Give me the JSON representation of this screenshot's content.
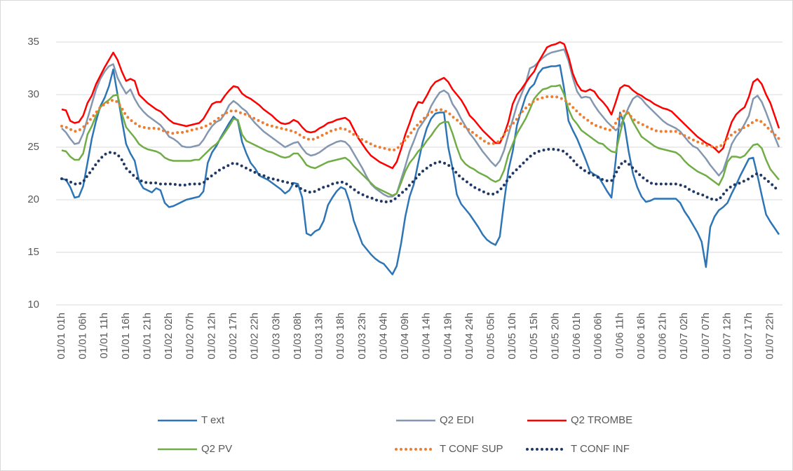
{
  "chart_data": {
    "type": "line",
    "categories": [
      "01/01 01h",
      null,
      null,
      null,
      null,
      "01/01 06h",
      null,
      null,
      null,
      null,
      "01/01 11h",
      null,
      null,
      null,
      null,
      "01/01 16h",
      null,
      null,
      null,
      null,
      "01/01 21h",
      null,
      null,
      null,
      null,
      "01/02 02h",
      null,
      null,
      null,
      null,
      "01/02 07h",
      null,
      null,
      null,
      null,
      "01/02 12h",
      null,
      null,
      null,
      null,
      "01/02 17h",
      null,
      null,
      null,
      null,
      "01/02 22h",
      null,
      null,
      null,
      null,
      "01/03 03h",
      null,
      null,
      null,
      null,
      "01/03 08h",
      null,
      null,
      null,
      null,
      "01/03 13h",
      null,
      null,
      null,
      null,
      "01/03 18h",
      null,
      null,
      null,
      null,
      "01/03 23h",
      null,
      null,
      null,
      null,
      "01/04 04h",
      null,
      null,
      null,
      null,
      "01/04 09h",
      null,
      null,
      null,
      null,
      "01/04 14h",
      null,
      null,
      null,
      null,
      "01/04 19h",
      null,
      null,
      null,
      null,
      "01/04 24h",
      null,
      null,
      null,
      null,
      "01/05 05h",
      null,
      null,
      null,
      null,
      "01/05 10h",
      null,
      null,
      null,
      null,
      "01/05 15h",
      null,
      null,
      null,
      null,
      "01/05 20h",
      null,
      null,
      null,
      null,
      "01/06 01h",
      null,
      null,
      null,
      null,
      "01/06 06h",
      null,
      null,
      null,
      null,
      "01/06 11h",
      null,
      null,
      null,
      null,
      "01/06 16h",
      null,
      null,
      null,
      null,
      "01/06 21h",
      null,
      null,
      null,
      null,
      "01/07 02h",
      null,
      null,
      null,
      null,
      "01/07 07h",
      null,
      null,
      null,
      null,
      "01/07 12h",
      null,
      null,
      null,
      null,
      "01/07 17h",
      null,
      null,
      null,
      null,
      "01/07 22h",
      null,
      null
    ],
    "series": [
      {
        "name": "T ext",
        "color": "#2e75b6",
        "dash": "solid",
        "values": [
          22.0,
          21.9,
          21.2,
          20.2,
          20.3,
          21.3,
          23.5,
          25.8,
          27.5,
          28.9,
          29.7,
          30.8,
          32.4,
          30.0,
          27.6,
          25.3,
          24.4,
          23.7,
          21.8,
          21.1,
          20.9,
          20.7,
          21.1,
          20.9,
          19.7,
          19.3,
          19.4,
          19.6,
          19.8,
          20.0,
          20.1,
          20.2,
          20.3,
          20.8,
          23.5,
          24.5,
          25.1,
          25.9,
          26.6,
          27.3,
          27.9,
          27.5,
          25.5,
          24.4,
          23.5,
          23.0,
          22.3,
          22.1,
          21.9,
          21.6,
          21.3,
          21.0,
          20.6,
          20.9,
          21.6,
          21.5,
          20.2,
          16.8,
          16.6,
          17.0,
          17.2,
          18.0,
          19.5,
          20.2,
          20.8,
          21.2,
          21.0,
          19.8,
          18.0,
          16.9,
          15.8,
          15.3,
          14.8,
          14.4,
          14.1,
          13.9,
          13.4,
          12.9,
          13.7,
          15.8,
          18.4,
          20.3,
          21.5,
          23.5,
          25.4,
          26.8,
          27.7,
          28.2,
          28.3,
          28.3,
          25.0,
          23.0,
          20.5,
          19.6,
          19.1,
          18.6,
          18.0,
          17.4,
          16.7,
          16.2,
          15.9,
          15.7,
          16.5,
          19.8,
          22.8,
          24.6,
          27.1,
          28.5,
          29.8,
          30.6,
          31.0,
          32.0,
          32.5,
          32.6,
          32.7,
          32.7,
          32.8,
          30.5,
          27.5,
          26.6,
          25.8,
          24.8,
          23.8,
          22.7,
          22.4,
          22.2,
          21.5,
          20.8,
          20.2,
          23.8,
          28.3,
          27.2,
          24.6,
          22.5,
          21.2,
          20.3,
          19.8,
          19.9,
          20.1,
          20.1,
          20.1,
          20.1,
          20.1,
          20.1,
          19.7,
          18.9,
          18.3,
          17.6,
          16.9,
          16.0,
          13.6,
          17.4,
          18.4,
          19.0,
          19.3,
          19.7,
          20.6,
          21.4,
          22.3,
          23.1,
          23.9,
          24.0,
          22.3,
          20.4,
          18.6,
          17.9,
          17.3,
          16.7
        ]
      },
      {
        "name": "Q2 EDI",
        "color": "#8497b0",
        "dash": "solid",
        "values": [
          26.8,
          26.4,
          25.8,
          25.3,
          25.4,
          26.3,
          27.7,
          29.1,
          30.5,
          31.5,
          32.2,
          32.7,
          32.9,
          31.6,
          30.8,
          30.1,
          30.5,
          29.6,
          28.9,
          28.4,
          28.0,
          27.7,
          27.4,
          27.1,
          26.6,
          26.0,
          25.8,
          25.5,
          25.1,
          25.0,
          25.0,
          25.1,
          25.2,
          25.7,
          26.4,
          27.0,
          27.4,
          27.6,
          28.2,
          29.0,
          29.4,
          29.1,
          28.7,
          28.4,
          27.8,
          27.3,
          26.9,
          26.5,
          26.2,
          25.9,
          25.6,
          25.3,
          25.0,
          25.2,
          25.4,
          25.5,
          24.9,
          24.4,
          24.2,
          24.3,
          24.5,
          24.8,
          25.1,
          25.3,
          25.5,
          25.6,
          25.5,
          25.1,
          24.4,
          23.7,
          23.0,
          22.2,
          21.5,
          21.1,
          20.8,
          20.5,
          20.3,
          20.3,
          20.6,
          21.9,
          23.2,
          24.6,
          25.6,
          26.7,
          27.3,
          27.9,
          28.9,
          29.6,
          30.2,
          30.4,
          30.1,
          29.1,
          28.5,
          27.7,
          27.0,
          26.3,
          25.8,
          25.2,
          24.6,
          24.1,
          23.6,
          23.2,
          23.7,
          24.7,
          26.2,
          27.6,
          29.0,
          30.0,
          31.0,
          32.5,
          32.7,
          33.1,
          33.5,
          33.8,
          34.0,
          34.1,
          34.2,
          34.3,
          33.2,
          31.6,
          30.3,
          29.7,
          29.8,
          29.7,
          29.0,
          28.4,
          27.9,
          27.4,
          27.0,
          26.6,
          27.0,
          27.8,
          28.8,
          29.6,
          29.9,
          29.6,
          29.1,
          28.7,
          28.3,
          27.9,
          27.5,
          27.2,
          27.0,
          26.8,
          26.5,
          26.0,
          25.5,
          25.1,
          24.9,
          24.4,
          23.9,
          23.3,
          22.8,
          22.3,
          22.8,
          24.0,
          25.3,
          26.0,
          26.5,
          27.2,
          28.0,
          29.6,
          29.9,
          29.3,
          28.3,
          27.2,
          26.0,
          25.0
        ]
      },
      {
        "name": "Q2 TROMBE",
        "color": "#ff0000",
        "dash": "solid",
        "values": [
          28.6,
          28.5,
          27.5,
          27.3,
          27.4,
          28.0,
          29.2,
          29.9,
          31.0,
          31.8,
          32.6,
          33.3,
          34.0,
          33.3,
          32.2,
          31.3,
          31.5,
          31.3,
          30.0,
          29.6,
          29.2,
          28.9,
          28.6,
          28.4,
          28.0,
          27.6,
          27.3,
          27.2,
          27.1,
          27.0,
          27.1,
          27.2,
          27.3,
          27.7,
          28.4,
          29.1,
          29.3,
          29.3,
          29.9,
          30.4,
          30.8,
          30.7,
          30.1,
          29.8,
          29.6,
          29.3,
          29.0,
          28.6,
          28.3,
          28.0,
          27.6,
          27.3,
          27.2,
          27.3,
          27.6,
          27.4,
          26.9,
          26.5,
          26.4,
          26.5,
          26.8,
          27.0,
          27.3,
          27.4,
          27.6,
          27.7,
          27.8,
          27.5,
          26.7,
          25.9,
          25.3,
          24.7,
          24.2,
          23.9,
          23.6,
          23.4,
          23.2,
          23.0,
          23.6,
          24.8,
          26.2,
          27.3,
          28.5,
          29.3,
          29.2,
          29.9,
          30.7,
          31.2,
          31.4,
          31.6,
          31.2,
          30.5,
          30.0,
          29.5,
          28.8,
          28.0,
          27.6,
          27.1,
          26.6,
          26.2,
          25.8,
          25.4,
          25.4,
          26.2,
          27.4,
          29.1,
          30.0,
          30.5,
          31.1,
          31.7,
          32.2,
          33.1,
          33.8,
          34.5,
          34.7,
          34.8,
          35.0,
          34.8,
          33.6,
          32.0,
          31.0,
          30.4,
          30.3,
          30.5,
          30.3,
          29.7,
          29.3,
          28.8,
          28.1,
          29.3,
          30.6,
          30.9,
          30.8,
          30.4,
          30.1,
          29.9,
          29.6,
          29.4,
          29.1,
          28.9,
          28.7,
          28.6,
          28.4,
          28.0,
          27.6,
          27.2,
          26.8,
          26.4,
          26.0,
          25.7,
          25.4,
          25.2,
          24.9,
          24.5,
          24.9,
          26.2,
          27.4,
          28.1,
          28.5,
          28.8,
          29.8,
          31.2,
          31.5,
          31.0,
          30.0,
          29.2,
          28.0,
          26.8
        ]
      },
      {
        "name": "Q2 PV",
        "color": "#70ad47",
        "dash": "solid",
        "values": [
          24.7,
          24.6,
          24.1,
          23.8,
          23.8,
          24.4,
          26.2,
          27.0,
          28.0,
          28.8,
          29.2,
          29.5,
          29.9,
          30.0,
          28.2,
          26.9,
          26.4,
          25.9,
          25.3,
          25.0,
          24.8,
          24.7,
          24.6,
          24.4,
          24.0,
          23.8,
          23.7,
          23.7,
          23.7,
          23.7,
          23.7,
          23.8,
          23.8,
          24.2,
          24.6,
          25.0,
          25.3,
          25.8,
          26.4,
          27.0,
          27.7,
          27.6,
          26.2,
          25.6,
          25.4,
          25.2,
          25.0,
          24.8,
          24.6,
          24.5,
          24.3,
          24.1,
          24.0,
          24.1,
          24.4,
          24.4,
          23.9,
          23.3,
          23.1,
          23.0,
          23.2,
          23.4,
          23.6,
          23.7,
          23.8,
          23.9,
          24.0,
          23.7,
          23.2,
          22.8,
          22.4,
          22.0,
          21.6,
          21.2,
          21.0,
          20.8,
          20.6,
          20.4,
          20.6,
          21.6,
          22.7,
          23.5,
          24.0,
          24.6,
          25.0,
          25.6,
          26.1,
          26.7,
          27.2,
          27.4,
          27.4,
          26.3,
          25.0,
          23.9,
          23.4,
          23.1,
          22.9,
          22.6,
          22.4,
          22.2,
          21.9,
          21.7,
          21.9,
          22.8,
          24.3,
          25.3,
          26.3,
          27.0,
          27.7,
          28.6,
          29.6,
          30.1,
          30.5,
          30.6,
          30.8,
          30.8,
          30.9,
          30.0,
          28.6,
          27.7,
          27.2,
          26.6,
          26.3,
          26.0,
          25.7,
          25.4,
          25.3,
          24.9,
          24.6,
          24.5,
          26.3,
          28.0,
          28.3,
          27.4,
          26.7,
          26.0,
          25.7,
          25.4,
          25.1,
          24.9,
          24.8,
          24.7,
          24.6,
          24.5,
          24.2,
          23.7,
          23.3,
          23.0,
          22.7,
          22.5,
          22.3,
          22.0,
          21.7,
          21.4,
          22.2,
          23.6,
          24.1,
          24.1,
          24.0,
          24.2,
          24.7,
          25.2,
          25.3,
          24.9,
          23.8,
          22.9,
          22.4,
          21.9
        ]
      },
      {
        "name": "T CONF SUP",
        "color": "#ed7d31",
        "dash": "dot",
        "values": [
          27.0,
          26.9,
          26.7,
          26.5,
          26.6,
          26.9,
          27.3,
          27.8,
          28.3,
          28.8,
          29.1,
          29.3,
          29.5,
          29.3,
          28.7,
          28.0,
          27.6,
          27.3,
          27.0,
          26.9,
          26.8,
          26.8,
          26.8,
          26.7,
          26.5,
          26.4,
          26.3,
          26.4,
          26.4,
          26.5,
          26.6,
          26.7,
          26.8,
          26.9,
          27.1,
          27.3,
          27.6,
          27.9,
          28.2,
          28.4,
          28.5,
          28.4,
          28.2,
          28.1,
          27.9,
          27.7,
          27.5,
          27.3,
          27.1,
          27.0,
          26.9,
          26.8,
          26.7,
          26.6,
          26.5,
          26.3,
          26.0,
          25.8,
          25.7,
          25.8,
          26.0,
          26.2,
          26.4,
          26.6,
          26.7,
          26.8,
          26.7,
          26.5,
          26.2,
          26.0,
          25.7,
          25.5,
          25.3,
          25.1,
          25.0,
          24.9,
          24.8,
          24.7,
          24.8,
          25.3,
          25.7,
          26.2,
          26.7,
          27.2,
          27.6,
          28.0,
          28.3,
          28.5,
          28.6,
          28.5,
          28.3,
          27.9,
          27.6,
          27.2,
          26.9,
          26.6,
          26.3,
          26.0,
          25.7,
          25.4,
          25.3,
          25.4,
          25.6,
          26.2,
          26.8,
          27.2,
          27.7,
          28.3,
          28.7,
          29.1,
          29.4,
          29.6,
          29.7,
          29.8,
          29.8,
          29.8,
          29.7,
          29.5,
          29.2,
          28.8,
          28.4,
          28.0,
          27.7,
          27.4,
          27.1,
          27.0,
          26.8,
          26.7,
          26.6,
          27.3,
          28.0,
          28.5,
          28.2,
          27.7,
          27.4,
          27.2,
          27.0,
          26.8,
          26.6,
          26.5,
          26.5,
          26.5,
          26.5,
          26.5,
          26.3,
          26.1,
          25.9,
          25.7,
          25.5,
          25.4,
          25.2,
          25.1,
          25.0,
          25.0,
          25.3,
          25.8,
          26.2,
          26.5,
          26.7,
          26.9,
          27.1,
          27.4,
          27.6,
          27.4,
          27.0,
          26.6,
          26.2,
          25.8
        ]
      },
      {
        "name": "T CONF INF",
        "color": "#203864",
        "dash": "dot",
        "values": [
          22.0,
          21.9,
          21.7,
          21.5,
          21.5,
          21.7,
          22.3,
          22.8,
          23.4,
          23.9,
          24.3,
          24.5,
          24.5,
          24.3,
          23.8,
          23.0,
          22.6,
          22.2,
          21.9,
          21.7,
          21.6,
          21.6,
          21.6,
          21.5,
          21.5,
          21.5,
          21.5,
          21.4,
          21.4,
          21.4,
          21.5,
          21.5,
          21.5,
          21.6,
          22.0,
          22.3,
          22.6,
          22.9,
          23.1,
          23.3,
          23.5,
          23.4,
          23.2,
          23.0,
          22.8,
          22.6,
          22.4,
          22.3,
          22.1,
          22.0,
          21.9,
          21.8,
          21.7,
          21.6,
          21.5,
          21.2,
          21.0,
          20.8,
          20.7,
          20.8,
          21.0,
          21.2,
          21.3,
          21.5,
          21.6,
          21.7,
          21.6,
          21.3,
          21.0,
          20.7,
          20.5,
          20.3,
          20.2,
          20.0,
          19.9,
          19.8,
          19.8,
          19.9,
          20.2,
          20.6,
          20.9,
          21.4,
          21.8,
          22.3,
          22.7,
          23.0,
          23.3,
          23.5,
          23.6,
          23.5,
          23.3,
          23.0,
          22.5,
          22.1,
          21.8,
          21.5,
          21.2,
          21.0,
          20.8,
          20.6,
          20.5,
          20.6,
          20.9,
          21.4,
          22.0,
          22.5,
          22.9,
          23.3,
          23.7,
          24.1,
          24.4,
          24.6,
          24.7,
          24.8,
          24.8,
          24.8,
          24.7,
          24.6,
          24.2,
          23.8,
          23.3,
          23.0,
          22.7,
          22.5,
          22.3,
          22.1,
          21.9,
          21.8,
          21.8,
          22.5,
          23.3,
          23.7,
          23.4,
          23.0,
          22.6,
          22.2,
          21.9,
          21.6,
          21.5,
          21.5,
          21.5,
          21.5,
          21.5,
          21.5,
          21.4,
          21.3,
          21.0,
          20.8,
          20.6,
          20.5,
          20.3,
          20.1,
          20.0,
          20.0,
          20.5,
          21.0,
          21.3,
          21.5,
          21.6,
          21.8,
          22.0,
          22.3,
          22.5,
          22.3,
          21.9,
          21.6,
          21.2,
          20.8
        ]
      }
    ],
    "ylim": [
      10,
      35
    ],
    "yticks": [
      10,
      15,
      20,
      25,
      30,
      35
    ],
    "grid": true,
    "legend": "bottom"
  }
}
